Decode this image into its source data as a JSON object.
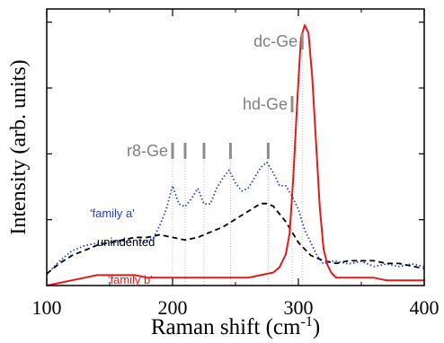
{
  "chart_data": {
    "type": "line",
    "xlabel": "Raman shift (cm",
    "xlabel_superscript": "-1",
    "xlabel_close": ")",
    "ylabel": "Intensity (arb. units)",
    "xlim": [
      100,
      400
    ],
    "ylim": [
      0,
      1
    ],
    "xticks": [
      100,
      200,
      300,
      400
    ],
    "grid": false,
    "series": [
      {
        "name": "'family a'",
        "color": "#1f3fd1",
        "style": "dotted",
        "x": [
          100,
          110,
          120,
          130,
          140,
          150,
          160,
          170,
          180,
          185,
          190,
          195,
          200,
          205,
          210,
          215,
          220,
          225,
          230,
          235,
          240,
          245,
          250,
          255,
          260,
          265,
          270,
          275,
          280,
          285,
          290,
          295,
          300,
          305,
          310,
          315,
          320,
          325,
          330,
          340,
          350,
          360,
          370,
          380,
          390,
          400
        ],
        "y": [
          0.03,
          0.08,
          0.12,
          0.14,
          0.15,
          0.15,
          0.16,
          0.15,
          0.16,
          0.17,
          0.22,
          0.28,
          0.37,
          0.3,
          0.29,
          0.32,
          0.36,
          0.3,
          0.3,
          0.36,
          0.4,
          0.43,
          0.38,
          0.35,
          0.36,
          0.4,
          0.44,
          0.46,
          0.42,
          0.37,
          0.37,
          0.33,
          0.28,
          0.2,
          0.15,
          0.1,
          0.07,
          0.08,
          0.08,
          0.07,
          0.08,
          0.06,
          0.07,
          0.06,
          0.07,
          0.06
        ]
      },
      {
        "name": "unindented",
        "color": "#000000",
        "style": "dashed",
        "x": [
          100,
          110,
          120,
          130,
          140,
          150,
          160,
          170,
          180,
          190,
          200,
          210,
          220,
          230,
          240,
          250,
          260,
          270,
          275,
          280,
          290,
          300,
          310,
          320,
          330,
          340,
          350,
          360,
          370,
          380,
          390,
          400
        ],
        "y": [
          0.0,
          0.04,
          0.07,
          0.09,
          0.11,
          0.12,
          0.13,
          0.14,
          0.14,
          0.15,
          0.14,
          0.13,
          0.14,
          0.16,
          0.18,
          0.21,
          0.24,
          0.27,
          0.27,
          0.26,
          0.2,
          0.12,
          0.07,
          0.05,
          0.04,
          0.05,
          0.05,
          0.05,
          0.04,
          0.04,
          0.03,
          0.02
        ]
      },
      {
        "name": "'family b'",
        "color": "#e31a1c",
        "style": "solid",
        "x": [
          100,
          110,
          120,
          130,
          140,
          150,
          160,
          170,
          180,
          190,
          200,
          210,
          220,
          230,
          240,
          250,
          260,
          270,
          280,
          285,
          290,
          293,
          296,
          299,
          302,
          305,
          308,
          311,
          314,
          317,
          320,
          323,
          326,
          330,
          335,
          340,
          350,
          360,
          370,
          380,
          390,
          400
        ],
        "y": [
          0.0,
          0.01,
          0.02,
          0.03,
          0.04,
          0.04,
          0.04,
          0.04,
          0.03,
          0.03,
          0.03,
          0.03,
          0.03,
          0.03,
          0.03,
          0.03,
          0.03,
          0.04,
          0.05,
          0.07,
          0.12,
          0.2,
          0.42,
          0.7,
          0.95,
          1.0,
          0.97,
          0.8,
          0.55,
          0.3,
          0.14,
          0.08,
          0.05,
          0.03,
          0.03,
          0.03,
          0.03,
          0.03,
          0.02,
          0.02,
          0.02,
          0.02
        ]
      }
    ],
    "series_labels": [
      {
        "series": 0,
        "text": "'family a'"
      },
      {
        "series": 1,
        "text": "unindented"
      },
      {
        "series": 2,
        "text": "'family b'"
      }
    ],
    "phase_markers": [
      {
        "label": "r8-Ge",
        "positions": [
          200,
          210,
          225,
          246,
          276
        ]
      },
      {
        "label": "hd-Ge",
        "positions": [
          295
        ]
      },
      {
        "label": "dc-Ge",
        "positions": [
          303
        ]
      }
    ]
  }
}
